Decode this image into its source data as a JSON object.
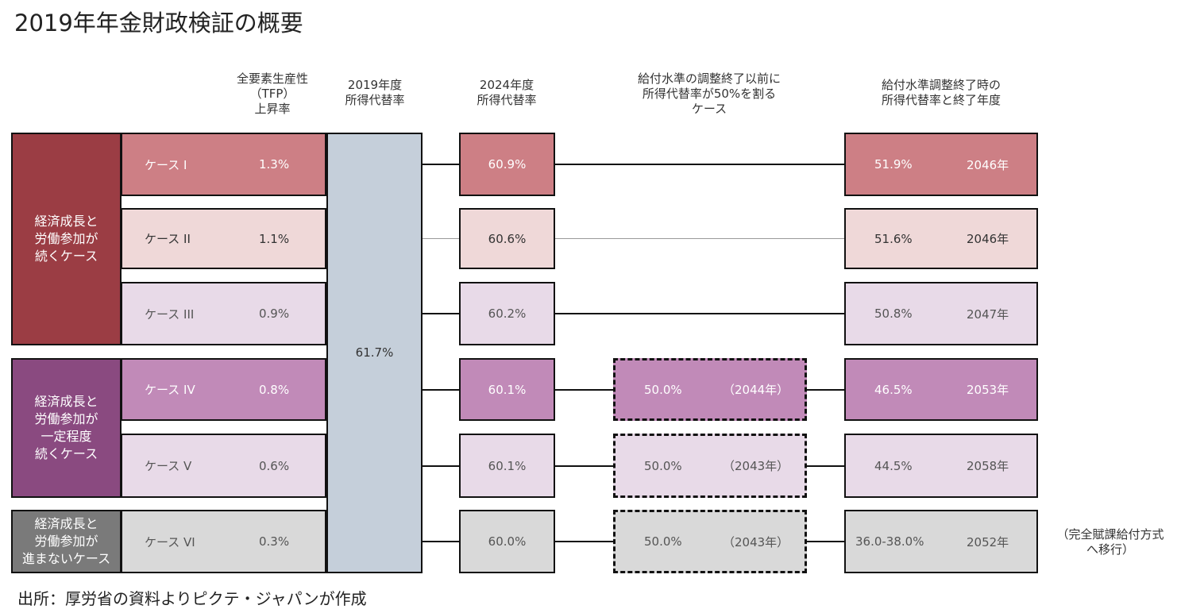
{
  "title": "2019年年金財政検証の概要",
  "headers": {
    "tfp": [
      "全要素生産性",
      "（TFP）",
      "上昇率"
    ],
    "y2019": [
      "2019年度",
      "所得代替率"
    ],
    "y2024": [
      "2024年度",
      "所得代替率"
    ],
    "below50": [
      "給付水準の調整終了以前に",
      "所得代替率が50%を割る",
      "ケース"
    ],
    "final": [
      "給付水準調整終了時の",
      "所得代替率と終了年度"
    ]
  },
  "groups": [
    {
      "label": [
        "経済成長と",
        "労働参加が",
        "続くケース"
      ],
      "color": "#9b3d44"
    },
    {
      "label": [
        "経済成長と",
        "労働参加が",
        "一定程度",
        "続くケース"
      ],
      "color": "#8a4a80"
    },
    {
      "label": [
        "経済成長と",
        "労働参加が",
        "進まないケース"
      ],
      "color": "#7a7a7a"
    }
  ],
  "rate_2019": "61.7%",
  "cases": [
    {
      "name": "ケース I",
      "tfp": "1.3%",
      "r2024": "60.9%",
      "below50": null,
      "final_rate": "51.9%",
      "final_year": "2046年",
      "color": "#cd7f85",
      "text": "#ffffff"
    },
    {
      "name": "ケース II",
      "tfp": "1.1%",
      "r2024": "60.6%",
      "below50": null,
      "final_rate": "51.6%",
      "final_year": "2046年",
      "color": "#efd8d8",
      "text": "#333333"
    },
    {
      "name": "ケース III",
      "tfp": "0.9%",
      "r2024": "60.2%",
      "below50": null,
      "final_rate": "50.8%",
      "final_year": "2047年",
      "color": "#e8dae8",
      "text": "#555555"
    },
    {
      "name": "ケース IV",
      "tfp": "0.8%",
      "r2024": "60.1%",
      "below50": {
        "rate": "50.0%",
        "year": "（2044年）"
      },
      "final_rate": "46.5%",
      "final_year": "2053年",
      "color": "#c18ab8",
      "text": "#ffffff"
    },
    {
      "name": "ケース V",
      "tfp": "0.6%",
      "r2024": "60.1%",
      "below50": {
        "rate": "50.0%",
        "year": "（2043年）"
      },
      "final_rate": "44.5%",
      "final_year": "2058年",
      "color": "#e8dae8",
      "text": "#555555"
    },
    {
      "name": "ケース VI",
      "tfp": "0.3%",
      "r2024": "60.0%",
      "below50": {
        "rate": "50.0%",
        "year": "（2043年）"
      },
      "final_rate": "36.0-38.0%",
      "final_year": "2052年",
      "color": "#d9d9d9",
      "text": "#555555"
    }
  ],
  "note": [
    "（完全賦課給付方式",
    "へ移行）"
  ],
  "source": "出所：厚労省の資料よりピクテ・ジャパンが作成"
}
